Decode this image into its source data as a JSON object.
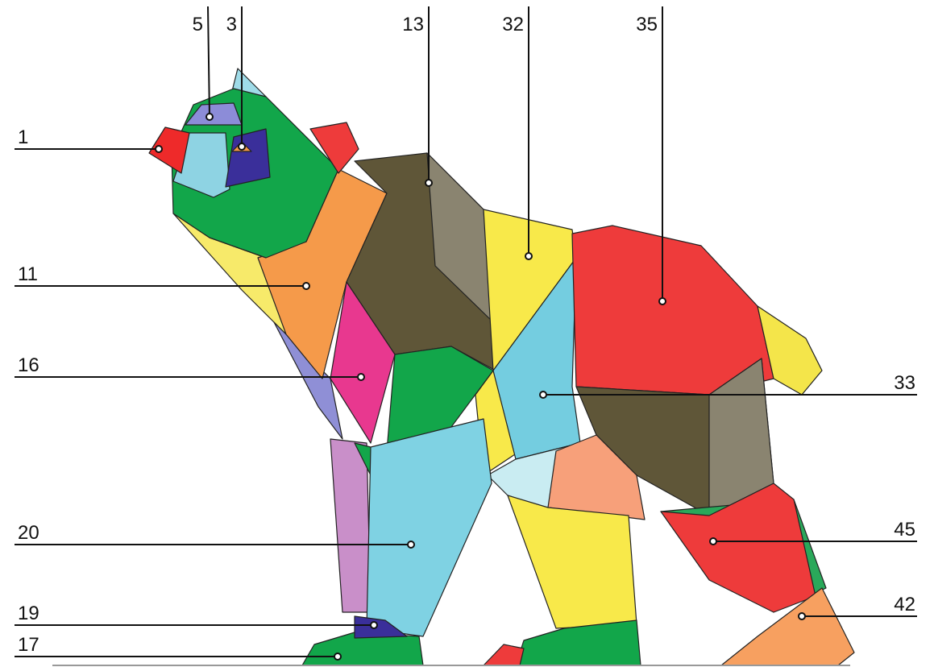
{
  "callouts": [
    {
      "label": "5"
    },
    {
      "label": "3"
    },
    {
      "label": "13"
    },
    {
      "label": "32"
    },
    {
      "label": "35"
    },
    {
      "label": "1"
    },
    {
      "label": "11"
    },
    {
      "label": "16"
    },
    {
      "label": "20"
    },
    {
      "label": "19"
    },
    {
      "label": "17"
    },
    {
      "label": "33"
    },
    {
      "label": "45"
    },
    {
      "label": "42"
    }
  ]
}
